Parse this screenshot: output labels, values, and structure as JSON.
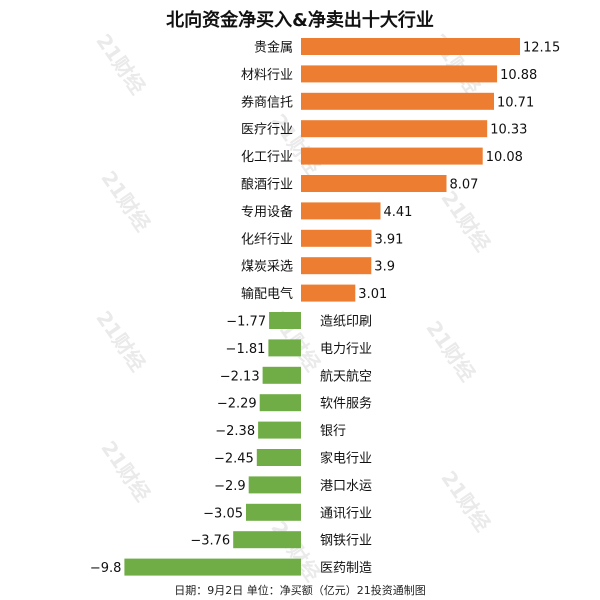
{
  "chart_data": {
    "type": "bar",
    "orientation": "horizontal",
    "title": "北向资金净买入&净卖出十大行业",
    "categories": [
      "贵金属",
      "材料行业",
      "券商信托",
      "医疗行业",
      "化工行业",
      "酿酒行业",
      "专用设备",
      "化纤行业",
      "煤炭采选",
      "输配电气",
      "造纸印刷",
      "电力行业",
      "航天航空",
      "软件服务",
      "银行",
      "家电行业",
      "港口水运",
      "通讯行业",
      "钢铁行业",
      "医药制造"
    ],
    "values": [
      12.15,
      10.88,
      10.71,
      10.33,
      10.08,
      8.07,
      4.41,
      3.91,
      3.9,
      3.01,
      -1.77,
      -1.81,
      -2.13,
      -2.29,
      -2.38,
      -2.45,
      -2.9,
      -3.05,
      -3.76,
      -9.8
    ],
    "value_labels": [
      "12.15",
      "10.88",
      "10.71",
      "10.33",
      "10.08",
      "8.07",
      "4.41",
      "3.91",
      "3.9",
      "3.01",
      "−1.77",
      "−1.81",
      "−2.13",
      "−2.29",
      "−2.38",
      "−2.45",
      "−2.9",
      "−3.05",
      "−3.76",
      "−9.8"
    ],
    "positive_color": "#ed7d31",
    "negative_color": "#70ad47",
    "grid": false,
    "legend": "none"
  },
  "watermark": "21财经",
  "footer": "日期：9月2日 单位：净买额（亿元）21投资通制图"
}
